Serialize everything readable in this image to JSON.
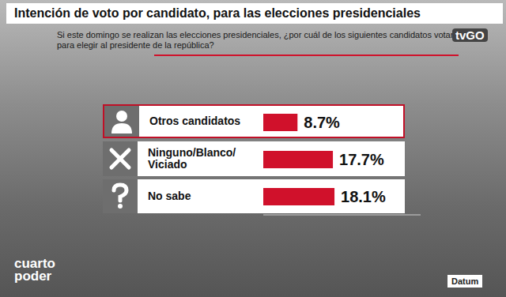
{
  "chart_data": {
    "type": "bar",
    "orientation": "horizontal",
    "title": "Intención de voto por candidato, para las elecciones presidenciales",
    "subtitle": "Si este domingo se realizan las elecciones presidenciales, ¿por cuál de los siguientes candidatos votará para elegir al presidente de la república?",
    "categories": [
      "Otros candidatos",
      "Ninguno/Blanco/Viciado",
      "No sabe"
    ],
    "values": [
      8.7,
      17.7,
      18.1
    ],
    "value_labels": [
      "8.7%",
      "17.7%",
      "18.1%"
    ],
    "color": "#d0112b",
    "xlim": [
      0,
      40
    ],
    "data_labels": true,
    "tick_labels": "y",
    "grid": false,
    "annotations": [
      "tvGO",
      "cuarto poder",
      "Datum"
    ]
  }
}
